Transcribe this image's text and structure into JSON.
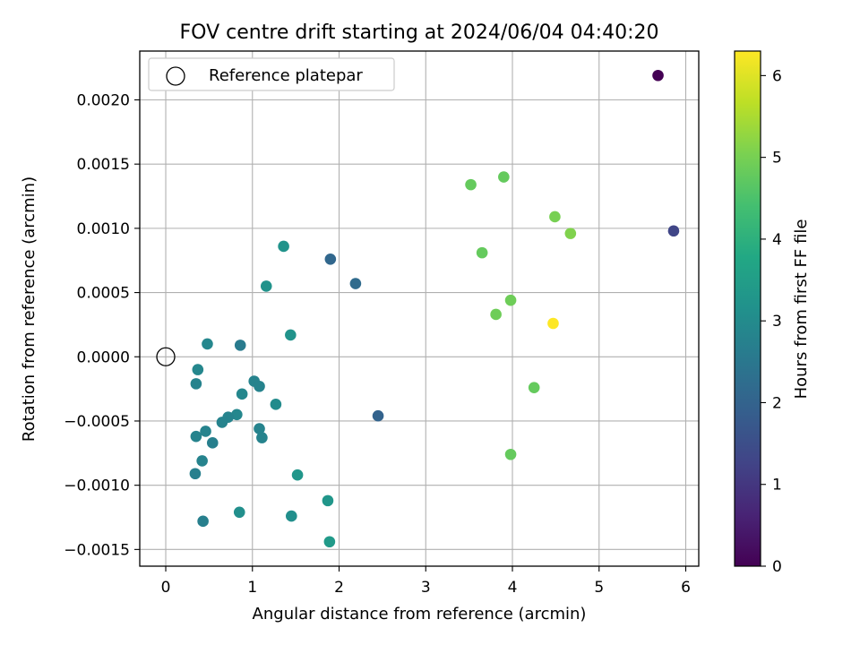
{
  "chart_data": {
    "type": "scatter",
    "title": "FOV centre drift starting at 2024/06/04 04:40:20",
    "xlabel": "Angular distance from reference (arcmin)",
    "ylabel": "Rotation from reference (arcmin)",
    "xlim": [
      -0.3,
      6.15
    ],
    "ylim": [
      -0.00163,
      0.00238
    ],
    "x_ticks": [
      0,
      1,
      2,
      3,
      4,
      5,
      6
    ],
    "x_tick_labels": [
      "0",
      "1",
      "2",
      "3",
      "4",
      "5",
      "6"
    ],
    "y_ticks": [
      -0.0015,
      -0.001,
      -0.0005,
      0.0,
      0.0005,
      0.001,
      0.0015,
      0.002
    ],
    "y_tick_labels": [
      "−0.0015",
      "−0.0010",
      "−0.0005",
      "0.0000",
      "0.0005",
      "0.0010",
      "0.0015",
      "0.0020"
    ],
    "grid": true,
    "legend": {
      "position": "upper-left",
      "entries": [
        "Reference platepar"
      ]
    },
    "reference_point": {
      "x": 0,
      "y": 0,
      "marker": "open-circle"
    },
    "colorbar": {
      "label": "Hours from first FF file",
      "range": [
        0,
        6.3
      ],
      "ticks": [
        0,
        1,
        2,
        3,
        4,
        5,
        6
      ],
      "tick_labels": [
        "0",
        "1",
        "2",
        "3",
        "4",
        "5",
        "6"
      ],
      "colormap": "viridis"
    },
    "points": [
      {
        "x": 5.68,
        "y": 0.00219,
        "c": 0.0
      },
      {
        "x": 5.86,
        "y": 0.00098,
        "c": 1.3
      },
      {
        "x": 1.9,
        "y": 0.00076,
        "c": 2.1
      },
      {
        "x": 2.19,
        "y": 0.00057,
        "c": 2.2
      },
      {
        "x": 2.45,
        "y": -0.00046,
        "c": 2.0
      },
      {
        "x": 0.86,
        "y": 9e-05,
        "c": 2.6
      },
      {
        "x": 0.48,
        "y": 0.0001,
        "c": 2.9
      },
      {
        "x": 0.37,
        "y": -0.0001,
        "c": 2.9
      },
      {
        "x": 0.35,
        "y": -0.00021,
        "c": 2.8
      },
      {
        "x": 0.88,
        "y": -0.00029,
        "c": 2.9
      },
      {
        "x": 1.02,
        "y": -0.00019,
        "c": 2.8
      },
      {
        "x": 1.08,
        "y": -0.00023,
        "c": 2.8
      },
      {
        "x": 0.82,
        "y": -0.00045,
        "c": 2.9
      },
      {
        "x": 0.72,
        "y": -0.00047,
        "c": 2.8
      },
      {
        "x": 0.65,
        "y": -0.00051,
        "c": 2.8
      },
      {
        "x": 0.46,
        "y": -0.00058,
        "c": 2.8
      },
      {
        "x": 0.35,
        "y": -0.00062,
        "c": 2.8
      },
      {
        "x": 0.54,
        "y": -0.00067,
        "c": 2.7
      },
      {
        "x": 0.42,
        "y": -0.00081,
        "c": 2.8
      },
      {
        "x": 0.34,
        "y": -0.00091,
        "c": 2.7
      },
      {
        "x": 0.43,
        "y": -0.00128,
        "c": 2.7
      },
      {
        "x": 1.08,
        "y": -0.00056,
        "c": 2.8
      },
      {
        "x": 1.11,
        "y": -0.00063,
        "c": 2.8
      },
      {
        "x": 1.27,
        "y": -0.00037,
        "c": 3.0
      },
      {
        "x": 1.16,
        "y": 0.00055,
        "c": 3.2
      },
      {
        "x": 1.36,
        "y": 0.00086,
        "c": 3.2
      },
      {
        "x": 1.44,
        "y": 0.00017,
        "c": 3.2
      },
      {
        "x": 0.85,
        "y": -0.00121,
        "c": 3.1
      },
      {
        "x": 1.45,
        "y": -0.00124,
        "c": 3.1
      },
      {
        "x": 1.52,
        "y": -0.00092,
        "c": 3.3
      },
      {
        "x": 1.87,
        "y": -0.00112,
        "c": 3.3
      },
      {
        "x": 1.89,
        "y": -0.00144,
        "c": 3.4
      },
      {
        "x": 3.52,
        "y": 0.00134,
        "c": 4.8
      },
      {
        "x": 3.9,
        "y": 0.0014,
        "c": 4.8
      },
      {
        "x": 4.49,
        "y": 0.00109,
        "c": 5.0
      },
      {
        "x": 4.67,
        "y": 0.00096,
        "c": 5.1
      },
      {
        "x": 3.65,
        "y": 0.00081,
        "c": 4.8
      },
      {
        "x": 3.98,
        "y": 0.00044,
        "c": 4.9
      },
      {
        "x": 3.81,
        "y": 0.00033,
        "c": 4.9
      },
      {
        "x": 4.47,
        "y": 0.00026,
        "c": 6.3
      },
      {
        "x": 4.25,
        "y": -0.00024,
        "c": 4.8
      },
      {
        "x": 3.98,
        "y": -0.00076,
        "c": 4.8
      }
    ]
  }
}
